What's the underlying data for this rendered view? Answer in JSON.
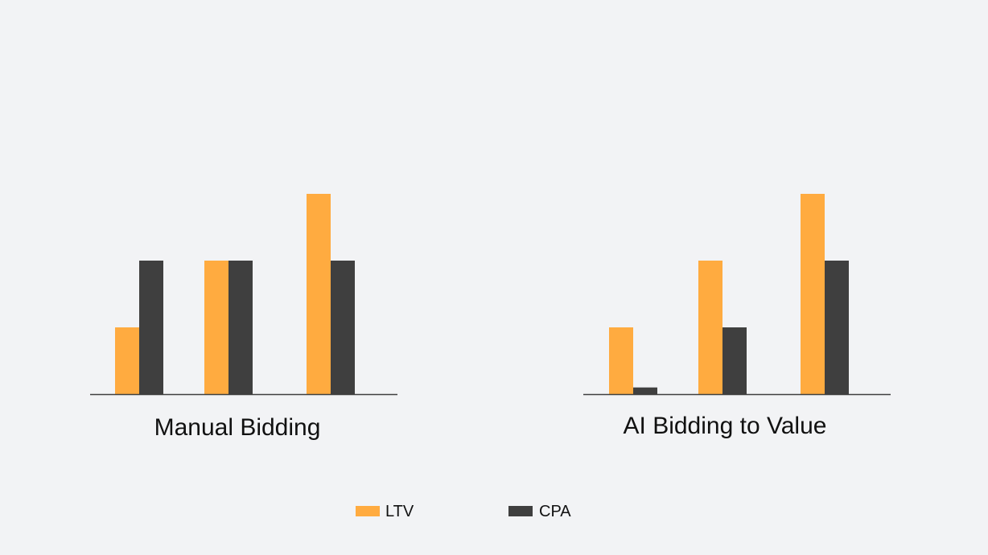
{
  "chart_data": [
    {
      "type": "bar",
      "title": "Manual Bidding",
      "categories": [
        "",
        "",
        ""
      ],
      "series": [
        {
          "name": "LTV",
          "values": [
            1,
            2,
            3
          ]
        },
        {
          "name": "CPA",
          "values": [
            2,
            2,
            2
          ]
        }
      ],
      "ylim": [
        0,
        3
      ],
      "grid": false
    },
    {
      "type": "bar",
      "title": "AI Bidding to Value",
      "categories": [
        "",
        "",
        ""
      ],
      "series": [
        {
          "name": "LTV",
          "values": [
            1,
            2,
            3
          ]
        },
        {
          "name": "CPA",
          "values": [
            0.1,
            1,
            2
          ]
        }
      ],
      "ylim": [
        0,
        3
      ],
      "grid": false
    }
  ],
  "legend": {
    "placement": "bottom",
    "items": [
      {
        "label": "LTV",
        "color": "#ffab40"
      },
      {
        "label": "CPA",
        "color": "#3f3f3f"
      }
    ]
  },
  "colors": {
    "background": "#f2f3f5",
    "axis": "#3f3f3f",
    "ltv": "#ffab40",
    "cpa": "#3f3f3f"
  }
}
